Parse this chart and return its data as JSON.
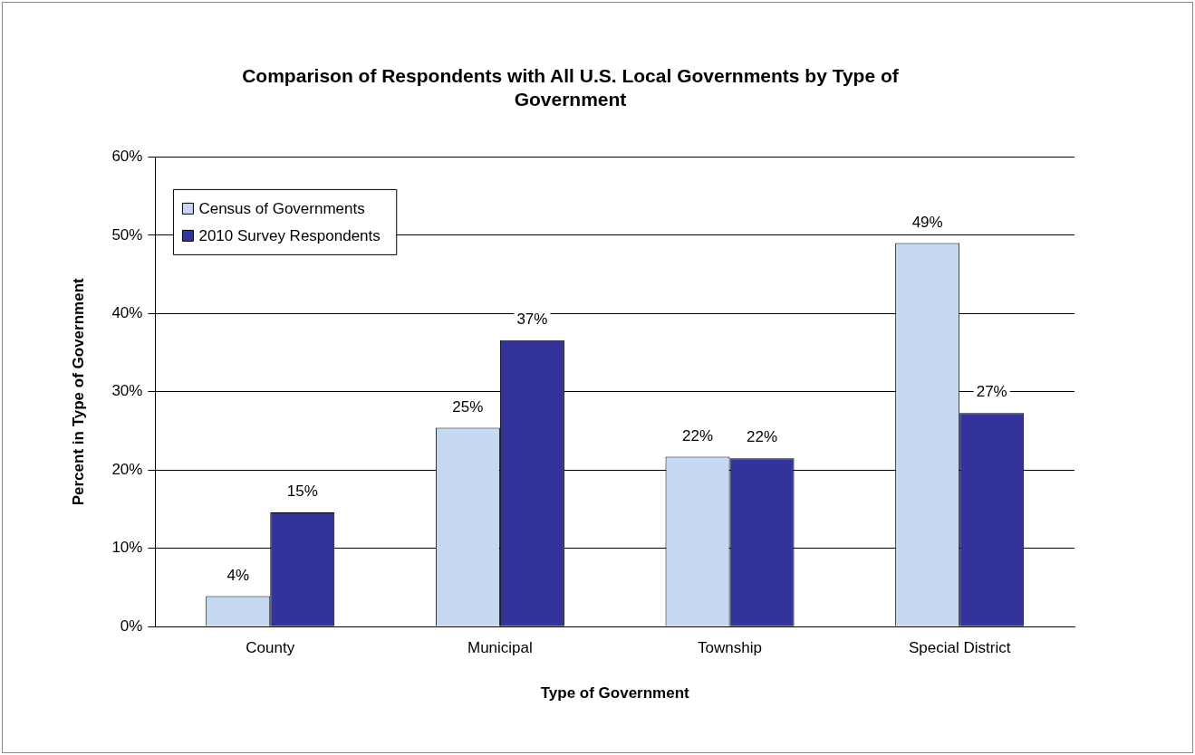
{
  "chart_data": {
    "type": "bar",
    "title": "Comparison of Respondents with All U.S. Local Governments by Type of Government",
    "xlabel": "Type of Government",
    "ylabel": "Percent in Type of Government",
    "categories": [
      "County",
      "Municipal",
      "Township",
      "Special District"
    ],
    "series": [
      {
        "name": "Census of Governments",
        "color": "#c6d9f0",
        "values": [
          3.9,
          25.4,
          21.7,
          49.0
        ],
        "value_labels": [
          "4%",
          "25%",
          "22%",
          "49%"
        ]
      },
      {
        "name": "2010 Survey Respondents",
        "color": "#333399",
        "values": [
          14.6,
          36.6,
          21.5,
          27.3
        ],
        "value_labels": [
          "15%",
          "37%",
          "22%",
          "27%"
        ]
      }
    ],
    "ylim": [
      0,
      60
    ],
    "yticks": [
      {
        "value": 0,
        "label": "0%"
      },
      {
        "value": 10,
        "label": "10%"
      },
      {
        "value": 20,
        "label": "20%"
      },
      {
        "value": 30,
        "label": "30%"
      },
      {
        "value": 40,
        "label": "40%"
      },
      {
        "value": 50,
        "label": "50%"
      },
      {
        "value": 60,
        "label": "60%"
      }
    ],
    "grid": "y",
    "legend": "top left"
  }
}
